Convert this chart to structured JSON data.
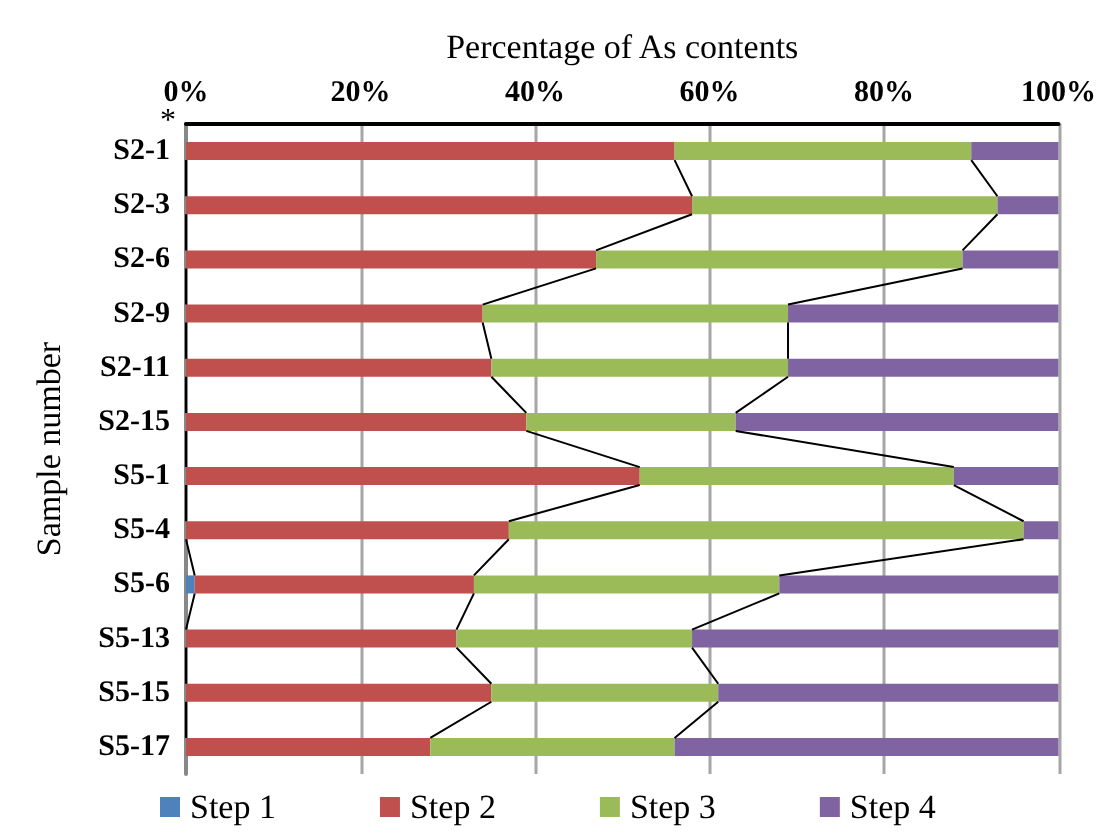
{
  "chart_data": {
    "type": "bar",
    "orientation": "horizontal",
    "stacked": true,
    "xlabel": "Percentage of As contents",
    "ylabel": "Sample number",
    "categories": [
      "S2-1",
      "S2-3",
      "S2-6",
      "S2-9",
      "S2-11",
      "S2-15",
      "S5-1",
      "S5-4",
      "S5-6",
      "S5-13",
      "S5-15",
      "S5-17"
    ],
    "series": [
      {
        "name": "Step 1",
        "color": "#4f81bd",
        "values": [
          0,
          0,
          0,
          0,
          0,
          0,
          0,
          0,
          1,
          0,
          0,
          0
        ]
      },
      {
        "name": "Step 2",
        "color": "#c0504d",
        "values": [
          56,
          58,
          47,
          34,
          35,
          39,
          52,
          37,
          32,
          31,
          35,
          28
        ]
      },
      {
        "name": "Step 3",
        "color": "#9bbb59",
        "values": [
          34,
          35,
          42,
          35,
          34,
          24,
          36,
          59,
          35,
          27,
          26,
          28
        ]
      },
      {
        "name": "Step 4",
        "color": "#8064a2",
        "values": [
          10,
          7,
          11,
          31,
          31,
          37,
          12,
          4,
          32,
          42,
          39,
          44
        ]
      }
    ],
    "xlim": [
      0,
      100
    ],
    "xticks": [
      {
        "value": 0,
        "label": "0%"
      },
      {
        "value": 20,
        "label": "20%"
      },
      {
        "value": 40,
        "label": "40%"
      },
      {
        "value": 60,
        "label": "60%"
      },
      {
        "value": 80,
        "label": "80%"
      },
      {
        "value": 100,
        "label": "100%"
      }
    ],
    "grid": "x",
    "legend": "bottom",
    "annotations": [
      "*"
    ]
  }
}
